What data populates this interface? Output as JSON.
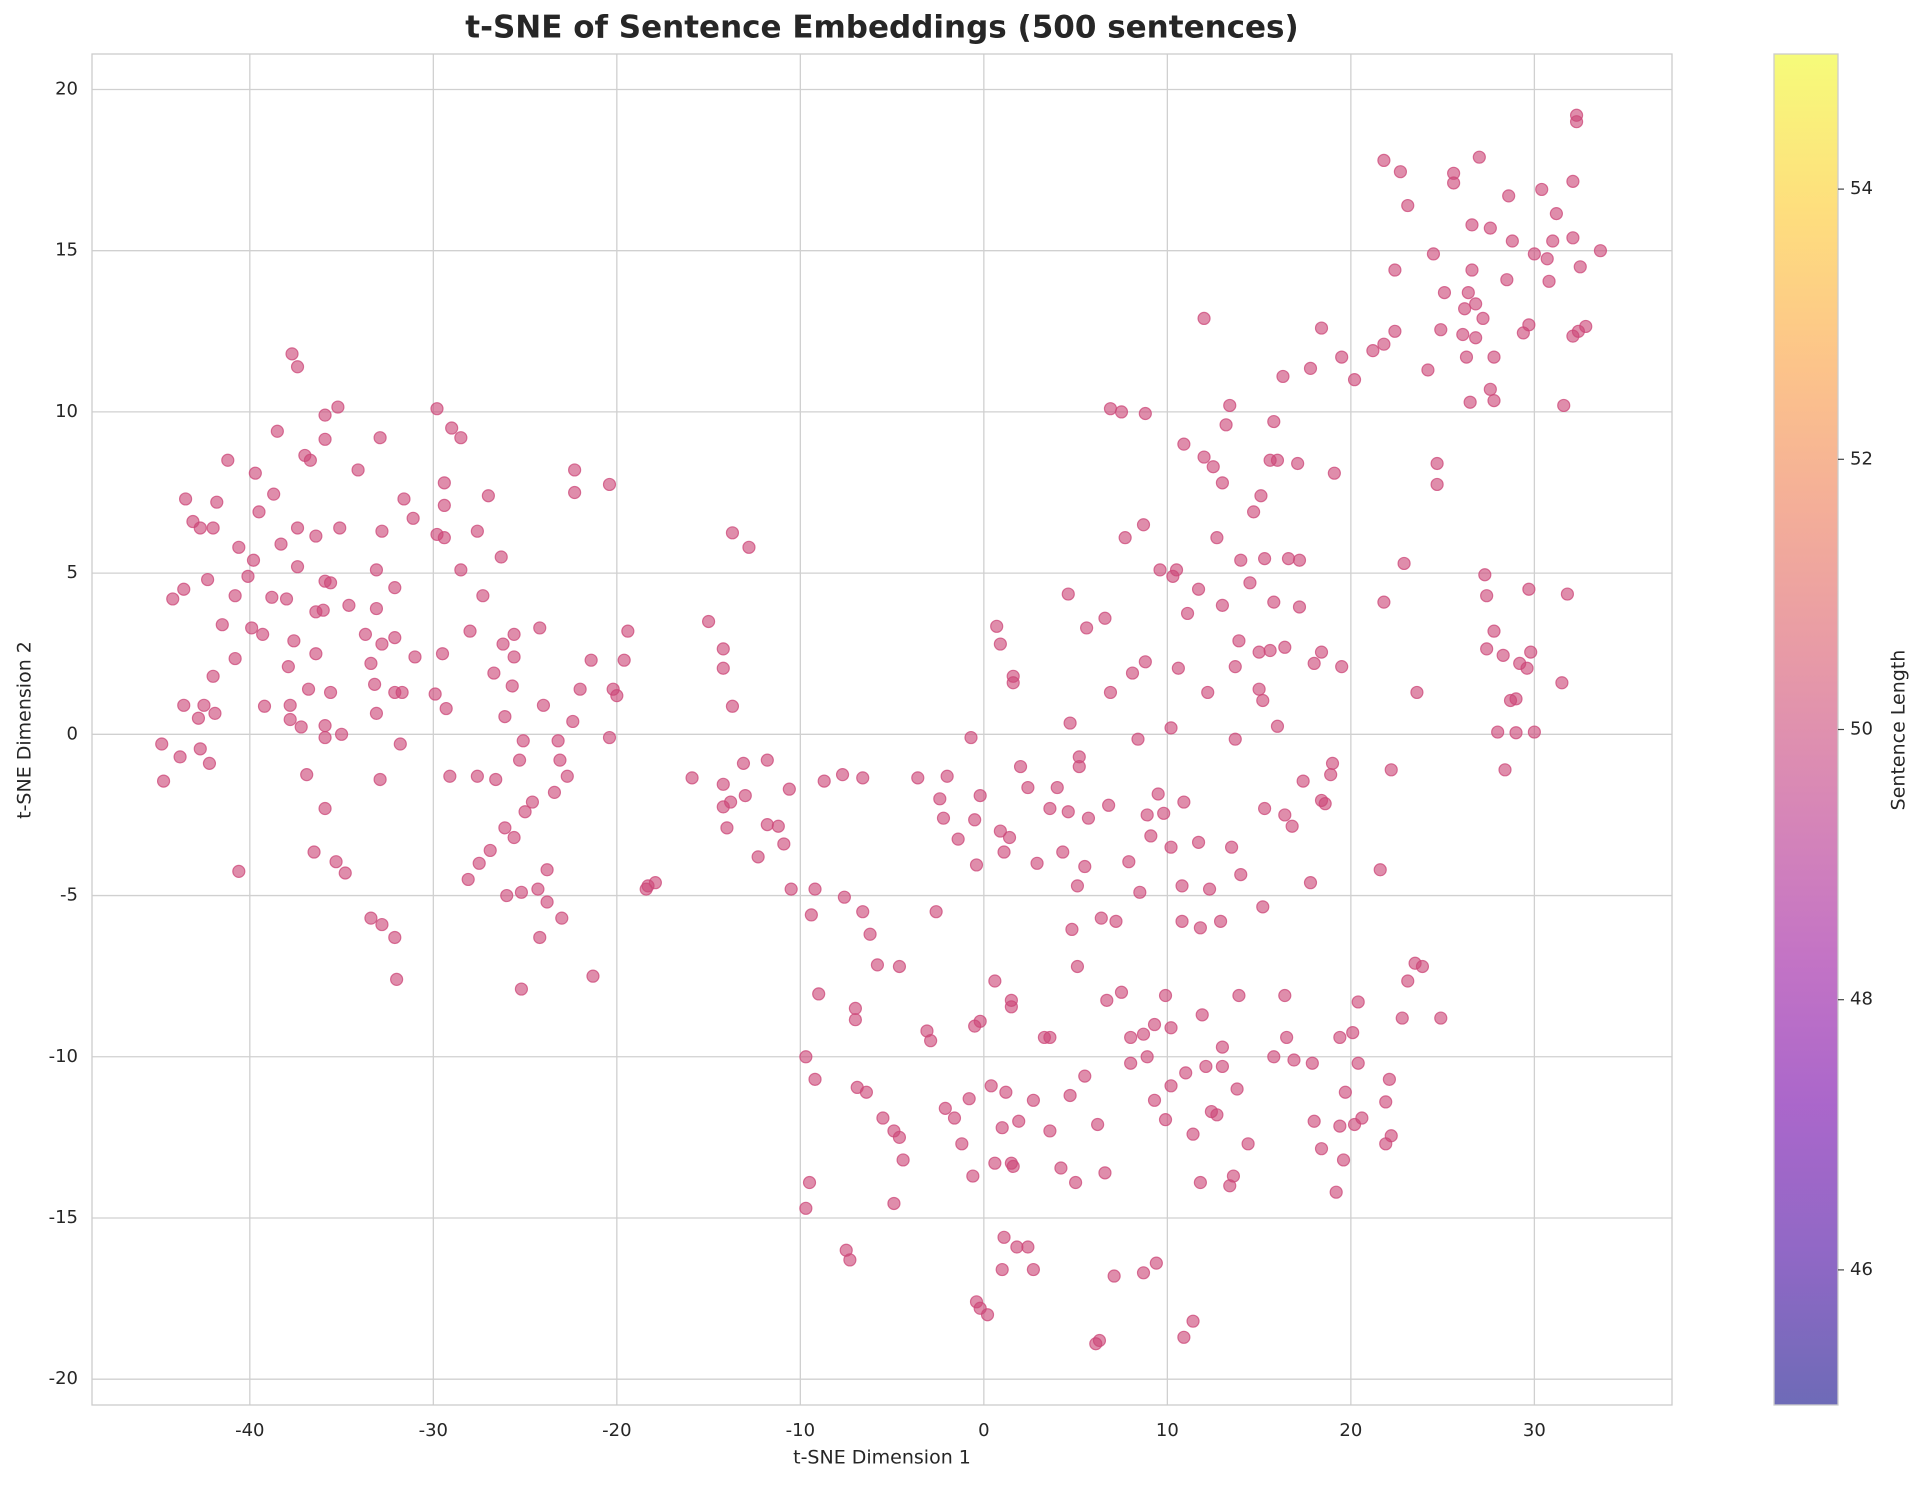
{
  "chart_data": {
    "type": "scatter",
    "title": "t-SNE of Sentence Embeddings (500 sentences)",
    "x_label": "t-SNE Dimension 1",
    "y_label": "t-SNE Dimension 2",
    "color": "#cc4778",
    "grid": true,
    "xlim": [
      -48.6,
      37.5
    ],
    "ylim": [
      -20.8,
      21.1
    ],
    "xticks": [
      -40,
      -30,
      -20,
      -10,
      0,
      10,
      20,
      30
    ],
    "yticks": [
      -20,
      -15,
      -10,
      -5,
      0,
      5,
      10,
      15,
      20
    ],
    "colorbar": {
      "label": "Sentence Length",
      "colormap": "plasma",
      "lim": [
        45,
        55
      ],
      "ticks": [
        46,
        48,
        50,
        52,
        54
      ]
    },
    "x": [
      -22.3,
      -22.3,
      -20.4,
      -19.4,
      -19.6,
      -21.4,
      -22.0,
      -22.4,
      -20.2,
      -20.0,
      -20.4,
      -21.3,
      -18.4,
      -18.3,
      -17.9,
      -23.2,
      -23.1,
      -22.7,
      -23.4,
      -23.0,
      -23.8,
      -23.8,
      -24.2,
      -24.3,
      -24.0,
      -24.2,
      -24.6,
      -25.0,
      -25.1,
      -25.3,
      -25.2,
      -25.2,
      -25.6,
      -25.6,
      -25.6,
      -25.7,
      -26.0,
      -26.1,
      -26.1,
      -26.2,
      -26.3,
      -26.6,
      -26.7,
      -26.9,
      -27.0,
      -27.3,
      -27.5,
      -27.6,
      -27.6,
      -28.0,
      -28.1,
      -28.5,
      -28.5,
      -29.0,
      -29.1,
      -29.3,
      -29.4,
      -29.4,
      -29.4,
      -29.5,
      -29.8,
      -29.8,
      -29.9,
      -31.1,
      -31.0,
      -31.6,
      -31.7,
      -31.8,
      -32.1,
      -32.0,
      -32.1,
      -32.1,
      -32.1,
      -32.8,
      -32.8,
      -32.9,
      -32.8,
      -32.9,
      -33.1,
      -33.1,
      -33.1,
      -33.2,
      -33.4,
      -33.4,
      -33.7,
      -34.1,
      -34.6,
      -34.8,
      -35.0,
      -35.1,
      -35.2,
      -35.3,
      -35.6,
      -35.6,
      -35.9,
      -35.9,
      -35.9,
      -35.9,
      -35.9,
      -35.9,
      -36.0,
      -36.4,
      -36.4,
      -36.4,
      -36.5,
      -36.7,
      -37.0,
      -36.8,
      -36.9,
      -37.2,
      -37.4,
      -37.4,
      -37.4,
      -37.7,
      -37.6,
      -37.8,
      -37.8,
      -37.9,
      -38.0,
      -38.3,
      -38.5,
      -38.7,
      -38.8,
      -39.2,
      -39.3,
      -39.5,
      -39.7,
      -39.9,
      -39.8,
      -40.1,
      -40.6,
      -40.6,
      -40.8,
      -40.8,
      -41.2,
      -41.5,
      -41.8,
      -41.9,
      -42.0,
      -42.0,
      -42.2,
      -42.3,
      -42.5,
      -42.7,
      -42.7,
      -42.8,
      -43.1,
      -43.5,
      -43.6,
      -43.6,
      -43.8,
      -44.2,
      -44.8,
      -44.7,
      -15.0,
      -14.2,
      -14.2,
      -13.7,
      -13.7,
      -12.8,
      -15.9,
      -14.2,
      -14.2,
      -13.8,
      -14.0,
      -13.1,
      -13.0,
      -12.3,
      -11.8,
      -11.8,
      -11.2,
      -10.9,
      -10.6,
      -10.5,
      -9.7,
      -9.4,
      -9.2,
      -9.2,
      -9.0,
      -8.7,
      -9.7,
      -9.5,
      -7.7,
      -7.6,
      -7.5,
      -7.3,
      -7.0,
      -7.0,
      -6.9,
      -6.6,
      -6.6,
      -6.4,
      -6.2,
      -5.8,
      -5.5,
      -4.9,
      -4.9,
      -4.6,
      -4.6,
      -4.4,
      -3.6,
      -3.1,
      -2.9,
      -2.6,
      -2.4,
      -2.2,
      -2.1,
      -2.0,
      -1.6,
      -1.4,
      -1.2,
      -0.8,
      -0.7,
      -0.6,
      -0.5,
      -0.5,
      -0.4,
      -0.4,
      -0.2,
      -0.2,
      -0.2,
      0.2,
      0.4,
      0.6,
      0.7,
      0.6,
      0.9,
      0.9,
      1.0,
      1.0,
      1.1,
      1.1,
      1.2,
      1.4,
      1.5,
      1.6,
      1.6,
      1.5,
      1.5,
      1.6,
      1.8,
      1.9,
      2.0,
      2.4,
      2.4,
      2.7,
      2.7,
      2.9,
      3.3,
      3.6,
      3.6,
      3.6,
      4.0,
      4.2,
      4.3,
      4.6,
      4.6,
      4.7,
      4.8,
      4.7,
      5.0,
      5.1,
      5.1,
      5.2,
      5.2,
      5.5,
      5.5,
      5.6,
      5.7,
      6.1,
      6.3,
      6.2,
      6.4,
      6.6,
      6.6,
      6.7,
      6.8,
      6.9,
      6.9,
      7.1,
      7.2,
      7.5,
      7.5,
      7.7,
      7.9,
      8.0,
      8.0,
      8.1,
      8.4,
      8.5,
      8.7,
      8.7,
      8.7,
      8.8,
      8.8,
      8.9,
      8.9,
      9.1,
      9.3,
      9.3,
      9.4,
      9.5,
      9.6,
      9.8,
      9.9,
      9.9,
      10.2,
      10.2,
      10.2,
      10.2,
      10.3,
      10.5,
      10.6,
      10.8,
      10.8,
      10.9,
      10.9,
      10.9,
      11.0,
      11.1,
      11.4,
      11.4,
      11.7,
      11.7,
      11.8,
      11.8,
      11.9,
      12.0,
      12.0,
      12.1,
      12.2,
      12.3,
      12.4,
      12.5,
      12.7,
      12.7,
      12.9,
      13.0,
      13.0,
      13.0,
      13.0,
      13.2,
      13.4,
      13.4,
      13.5,
      13.6,
      13.7,
      13.7,
      13.8,
      13.9,
      13.9,
      14.0,
      14.0,
      14.4,
      14.5,
      14.7,
      15.0,
      15.0,
      15.1,
      15.2,
      15.2,
      15.3,
      15.3,
      15.6,
      15.6,
      15.8,
      15.8,
      15.8,
      16.0,
      16.0,
      16.3,
      16.4,
      16.4,
      16.4,
      16.5,
      16.6,
      16.8,
      16.9,
      17.1,
      17.2,
      17.2,
      17.4,
      17.8,
      17.8,
      17.9,
      18.0,
      18.0,
      18.4,
      18.4,
      18.4,
      18.4,
      18.6,
      18.9,
      19.0,
      19.1,
      19.2,
      19.4,
      19.4,
      19.5,
      19.5,
      19.7,
      19.6,
      20.1,
      20.2,
      20.2,
      20.4,
      20.4,
      20.6,
      21.2,
      21.6,
      21.8,
      21.8,
      21.8,
      21.9,
      21.9,
      22.1,
      22.2,
      22.2,
      22.4,
      22.4,
      22.7,
      22.8,
      22.9,
      23.1,
      23.1,
      23.5,
      23.6,
      23.9,
      24.2,
      24.5,
      24.7,
      24.7,
      24.9,
      24.9,
      25.1,
      25.6,
      25.6,
      26.1,
      26.2,
      26.3,
      26.4,
      26.5,
      26.6,
      26.6,
      26.8,
      26.8,
      27.0,
      27.2,
      27.3,
      27.4,
      27.4,
      27.6,
      27.6,
      27.8,
      27.8,
      27.8,
      28.0,
      28.3,
      28.4,
      28.5,
      28.6,
      28.7,
      28.8,
      29.0,
      29.0,
      29.2,
      29.4,
      29.6,
      29.7,
      29.7,
      29.8,
      30.0,
      30.0,
      30.4,
      30.7,
      30.8,
      31.0,
      31.2,
      31.6,
      31.5,
      31.8,
      32.1,
      32.1,
      32.1,
      32.3,
      32.3,
      32.4,
      32.5,
      32.8,
      33.6
    ],
    "values": [
      8.2,
      7.5,
      7.75,
      3.2,
      2.3,
      2.3,
      1.4,
      0.4,
      1.4,
      1.2,
      -0.1,
      -7.5,
      -4.8,
      -4.7,
      -4.6,
      -0.2,
      -0.8,
      -1.3,
      -1.8,
      -5.7,
      -5.2,
      -4.2,
      -6.3,
      -4.8,
      0.9,
      3.3,
      -2.1,
      -2.4,
      -0.2,
      -0.8,
      -4.9,
      -7.9,
      -3.2,
      2.4,
      3.1,
      1.5,
      -5.0,
      -2.9,
      0.55,
      2.8,
      5.5,
      -1.4,
      1.9,
      -3.6,
      7.4,
      4.3,
      -4.0,
      6.3,
      -1.3,
      3.2,
      -4.5,
      5.1,
      9.2,
      9.5,
      -1.3,
      0.8,
      7.8,
      7.1,
      6.1,
      2.5,
      10.1,
      6.2,
      1.25,
      6.7,
      2.4,
      7.3,
      1.3,
      -0.3,
      -6.3,
      -7.6,
      1.3,
      3.0,
      4.55,
      2.8,
      6.3,
      9.2,
      -5.9,
      -1.4,
      0.65,
      3.9,
      5.1,
      1.55,
      2.2,
      -5.7,
      3.1,
      8.2,
      4.0,
      -4.3,
      0.0,
      6.4,
      10.15,
      -3.95,
      1.3,
      4.7,
      9.15,
      9.9,
      -2.3,
      4.75,
      0.27,
      -0.1,
      3.85,
      3.8,
      6.15,
      2.5,
      -3.65,
      8.5,
      8.65,
      1.4,
      -1.25,
      0.23,
      5.2,
      6.4,
      11.4,
      11.8,
      2.9,
      0.9,
      0.46,
      2.1,
      4.2,
      5.9,
      9.4,
      7.45,
      4.25,
      0.87,
      3.1,
      6.9,
      8.1,
      3.3,
      5.4,
      4.9,
      5.8,
      -4.25,
      2.35,
      4.3,
      8.5,
      3.4,
      7.2,
      0.65,
      1.8,
      6.4,
      -0.9,
      4.8,
      0.9,
      -0.45,
      6.4,
      0.5,
      6.6,
      7.3,
      4.5,
      0.9,
      -0.7,
      4.2,
      -0.3,
      -1.45,
      3.5,
      2.65,
      2.05,
      6.25,
      0.87,
      5.8,
      -1.35,
      -1.55,
      -2.25,
      -2.1,
      -2.9,
      -0.9,
      -1.9,
      -3.8,
      -0.8,
      -2.8,
      -2.85,
      -3.4,
      -1.7,
      -4.8,
      -10.0,
      -5.6,
      -4.8,
      -10.7,
      -8.05,
      -1.45,
      -14.7,
      -13.9,
      -1.25,
      -5.05,
      -16.0,
      -16.3,
      -8.5,
      -8.85,
      -10.95,
      -5.5,
      -1.35,
      -11.1,
      -6.2,
      -7.15,
      -11.9,
      -14.55,
      -12.3,
      -12.5,
      -7.2,
      -13.2,
      -1.35,
      -9.2,
      -9.5,
      -5.5,
      -2.0,
      -2.6,
      -11.6,
      -1.3,
      -11.9,
      -3.25,
      -12.7,
      -11.3,
      -0.1,
      -13.7,
      -2.65,
      -9.05,
      -4.05,
      -17.6,
      -8.9,
      -17.8,
      -1.9,
      -18.0,
      -10.9,
      -7.65,
      3.35,
      -13.3,
      2.8,
      -3.0,
      -16.6,
      -12.2,
      -3.65,
      -15.6,
      -11.1,
      -3.2,
      -13.3,
      1.6,
      1.8,
      -8.45,
      -8.25,
      -13.4,
      -15.9,
      -12.0,
      -1.0,
      -1.65,
      -15.9,
      -16.6,
      -11.35,
      -4.0,
      -9.4,
      -9.4,
      -2.3,
      -12.3,
      -1.65,
      -13.45,
      -3.65,
      -2.4,
      4.35,
      0.35,
      -6.05,
      -11.2,
      -13.9,
      -4.7,
      -7.2,
      -0.7,
      -1.0,
      -4.1,
      -10.6,
      3.3,
      -2.6,
      -18.9,
      -18.8,
      -12.1,
      -5.7,
      3.6,
      -13.6,
      -8.25,
      -2.2,
      1.3,
      10.1,
      -16.8,
      -5.8,
      10.0,
      -8.0,
      6.1,
      -3.95,
      -10.2,
      -9.4,
      1.9,
      -0.15,
      -4.9,
      -9.3,
      -16.7,
      6.5,
      9.95,
      2.25,
      -2.5,
      -10.0,
      -3.15,
      -9.0,
      -11.35,
      -16.4,
      -1.85,
      5.1,
      -2.45,
      -8.1,
      -11.95,
      0.2,
      -3.5,
      -10.9,
      -9.1,
      4.9,
      5.1,
      2.05,
      -4.7,
      -5.8,
      9.0,
      -2.1,
      -18.7,
      -10.5,
      3.75,
      -12.4,
      -18.2,
      -3.35,
      4.5,
      -6.0,
      -13.9,
      -8.7,
      12.9,
      8.6,
      -10.3,
      1.3,
      -4.8,
      -11.7,
      8.3,
      -11.8,
      6.1,
      -5.8,
      -10.3,
      4.0,
      7.8,
      -9.7,
      9.6,
      -14.0,
      10.2,
      -3.5,
      -13.7,
      2.1,
      -0.15,
      -11.0,
      2.9,
      -8.1,
      5.4,
      -4.35,
      -12.7,
      4.7,
      6.9,
      2.55,
      1.4,
      7.4,
      1.05,
      -5.35,
      -2.3,
      5.45,
      2.6,
      8.5,
      9.7,
      -10.0,
      4.1,
      8.5,
      0.25,
      11.1,
      -8.1,
      -2.5,
      2.7,
      -9.4,
      5.45,
      -2.85,
      -10.1,
      8.4,
      5.4,
      3.95,
      -1.45,
      11.35,
      -4.6,
      -10.2,
      2.2,
      -12.0,
      12.6,
      -12.85,
      2.55,
      -2.05,
      -2.15,
      -1.25,
      -0.9,
      8.1,
      -14.2,
      -9.4,
      -12.15,
      2.1,
      11.7,
      -11.1,
      -13.2,
      -9.25,
      11.0,
      -12.1,
      -8.3,
      -10.2,
      -11.9,
      11.9,
      -4.2,
      17.8,
      4.1,
      12.1,
      -11.4,
      -12.7,
      -10.7,
      -12.45,
      -1.1,
      12.5,
      14.4,
      17.45,
      -8.8,
      5.3,
      16.4,
      -7.65,
      -7.1,
      1.3,
      -7.2,
      11.3,
      14.9,
      8.4,
      7.75,
      12.55,
      -8.8,
      13.7,
      17.4,
      17.1,
      12.4,
      13.2,
      11.7,
      13.7,
      10.3,
      15.8,
      14.4,
      13.35,
      12.3,
      17.9,
      12.9,
      4.95,
      2.65,
      4.3,
      15.7,
      10.7,
      11.7,
      10.35,
      3.2,
      0.07,
      2.45,
      -1.1,
      14.1,
      16.7,
      1.05,
      15.3,
      1.1,
      0.05,
      2.2,
      12.45,
      2.05,
      12.7,
      4.5,
      2.55,
      14.9,
      0.07,
      16.9,
      14.75,
      14.05,
      15.3,
      16.15,
      10.2,
      1.6,
      4.35,
      15.4,
      17.15,
      12.35,
      19.2,
      19.0,
      12.5,
      14.5,
      12.65,
      15.0
    ]
  }
}
